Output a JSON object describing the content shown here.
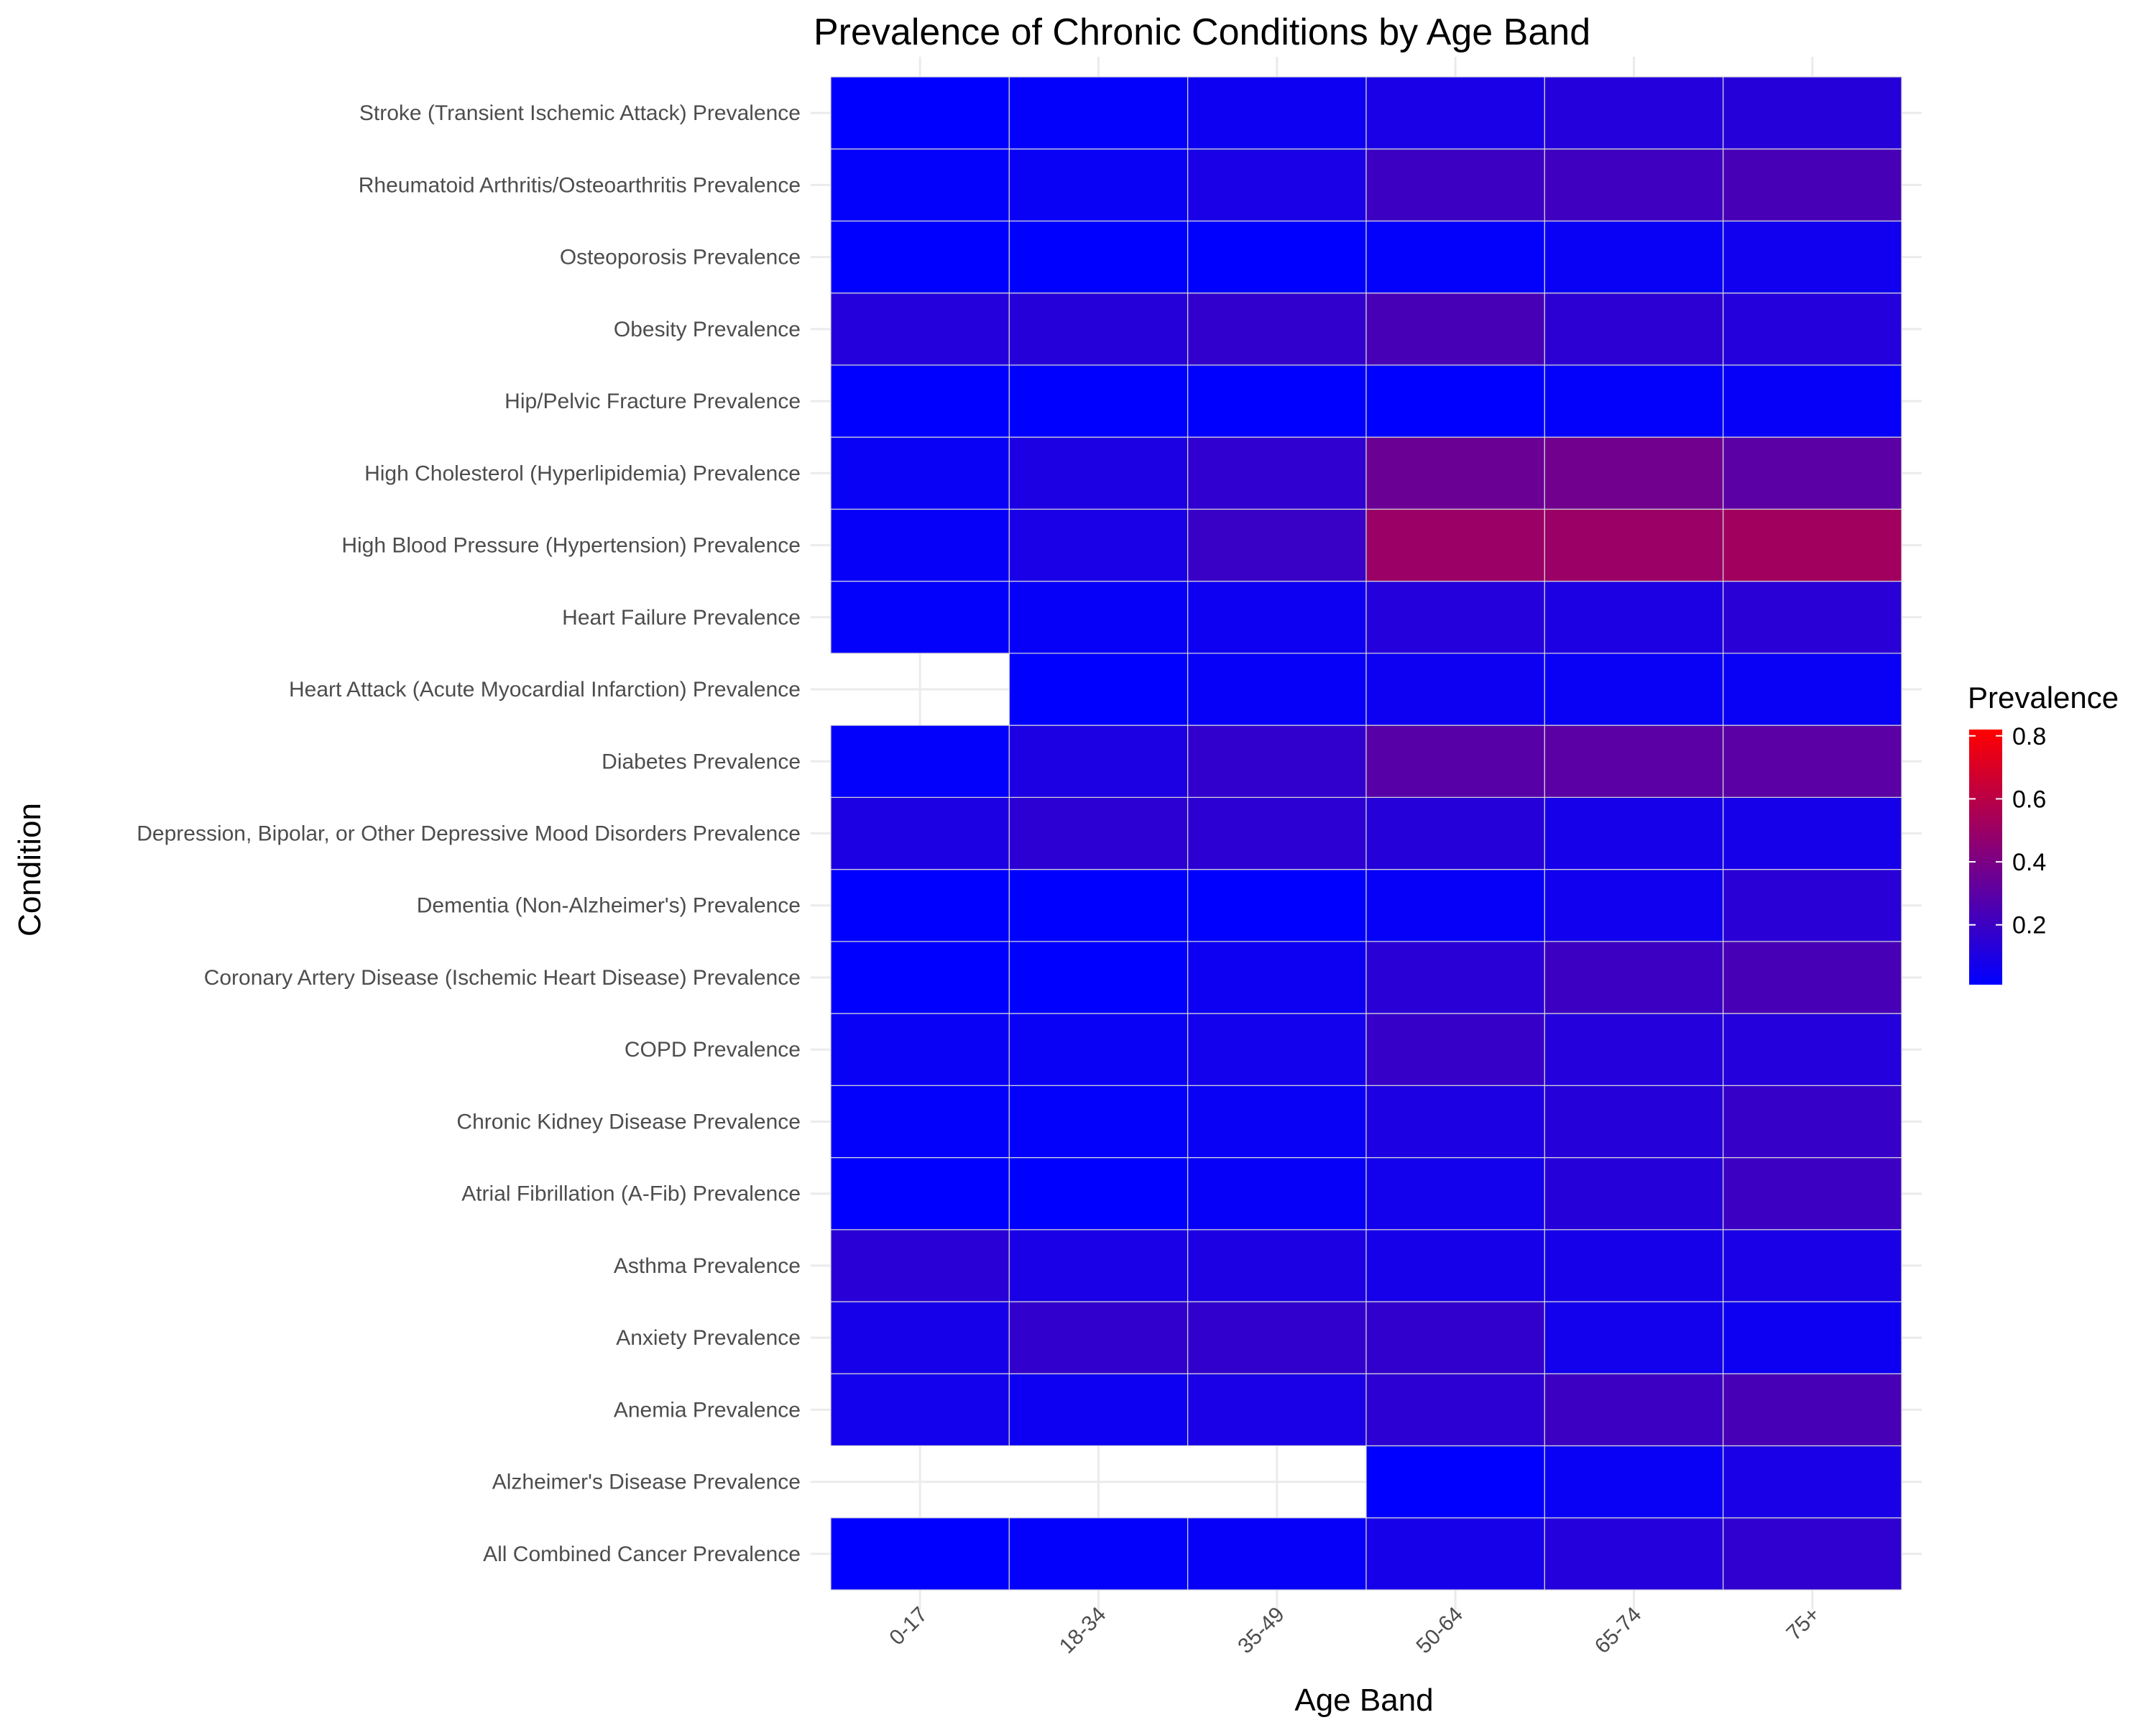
{
  "chart_data": {
    "type": "heatmap",
    "title": "Prevalence of Chronic Conditions by Age Band",
    "xlabel": "Age Band",
    "ylabel": "Condition",
    "x": [
      "0-17",
      "18-34",
      "35-49",
      "50-64",
      "65-74",
      "75+"
    ],
    "y": [
      "All Combined Cancer Prevalence",
      "Alzheimer's Disease Prevalence",
      "Anemia Prevalence",
      "Anxiety Prevalence",
      "Asthma Prevalence",
      "Atrial Fibrillation (A-Fib) Prevalence",
      "Chronic Kidney Disease Prevalence",
      "COPD Prevalence",
      "Coronary Artery Disease (Ischemic Heart Disease) Prevalence",
      "Dementia (Non-Alzheimer's) Prevalence",
      "Depression, Bipolar, or Other Depressive Mood Disorders Prevalence",
      "Diabetes Prevalence",
      "Heart Attack (Acute Myocardial Infarction) Prevalence",
      "Heart Failure Prevalence",
      "High Blood Pressure (Hypertension) Prevalence",
      "High Cholesterol (Hyperlipidemia) Prevalence",
      "Hip/Pelvic Fracture Prevalence",
      "Obesity Prevalence",
      "Osteoporosis Prevalence",
      "Rheumatoid Arthritis/Osteoarthritis Prevalence",
      "Stroke (Transient Ischemic Attack) Prevalence"
    ],
    "values": [
      [
        0.01,
        0.02,
        0.03,
        0.08,
        0.12,
        0.16
      ],
      [
        null,
        null,
        null,
        0.01,
        0.04,
        0.09
      ],
      [
        0.07,
        0.05,
        0.09,
        0.15,
        0.2,
        0.24
      ],
      [
        0.08,
        0.17,
        0.17,
        0.17,
        0.07,
        0.05
      ],
      [
        0.14,
        0.09,
        0.1,
        0.08,
        0.08,
        0.09
      ],
      [
        0.01,
        0.01,
        0.03,
        0.07,
        0.13,
        0.2
      ],
      [
        0.02,
        0.02,
        0.04,
        0.1,
        0.13,
        0.18
      ],
      [
        0.04,
        0.04,
        0.07,
        0.18,
        0.12,
        0.12
      ],
      [
        0.01,
        0.01,
        0.05,
        0.14,
        0.2,
        0.24
      ],
      [
        0.01,
        0.01,
        0.01,
        0.03,
        0.06,
        0.14
      ],
      [
        0.1,
        0.15,
        0.15,
        0.13,
        0.08,
        0.08
      ],
      [
        0.02,
        0.1,
        0.17,
        0.29,
        0.3,
        0.3
      ],
      [
        null,
        0.01,
        0.03,
        0.05,
        0.04,
        0.04
      ],
      [
        0.02,
        0.03,
        0.05,
        0.12,
        0.1,
        0.14
      ],
      [
        0.03,
        0.09,
        0.19,
        0.5,
        0.5,
        0.52
      ],
      [
        0.04,
        0.1,
        0.16,
        0.35,
        0.37,
        0.3
      ],
      [
        0.01,
        0.01,
        0.01,
        0.01,
        0.02,
        0.03
      ],
      [
        0.12,
        0.13,
        0.17,
        0.24,
        0.15,
        0.12
      ],
      [
        0.01,
        0.01,
        0.01,
        0.02,
        0.04,
        0.06
      ],
      [
        0.02,
        0.04,
        0.09,
        0.2,
        0.21,
        0.24
      ],
      [
        0.01,
        0.02,
        0.05,
        0.09,
        0.12,
        0.13
      ]
    ],
    "colorscale": {
      "low": "#0000ff",
      "high": "#ff0000",
      "min": 0.01,
      "max": 0.82
    },
    "legend": {
      "title": "Prevalence",
      "ticks": [
        "0.2",
        "0.4",
        "0.6",
        "0.8"
      ],
      "tick_values": [
        0.2,
        0.4,
        0.6,
        0.8
      ],
      "position": "right"
    },
    "grid": true
  }
}
